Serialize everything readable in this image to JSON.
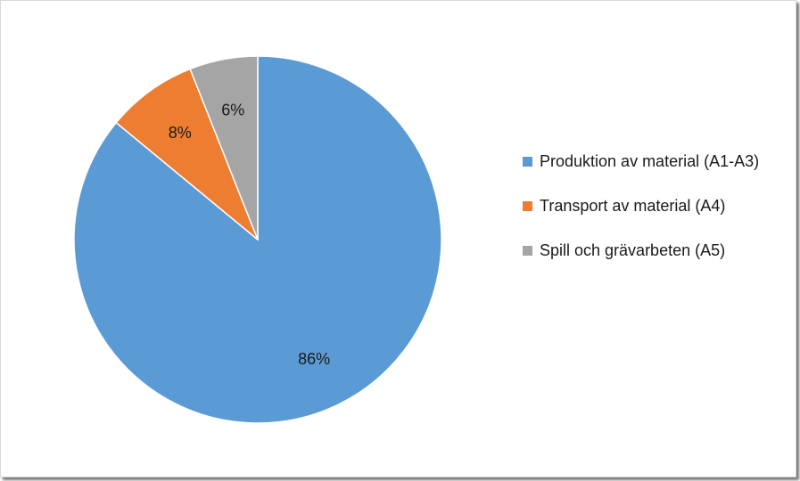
{
  "chart_data": {
    "type": "pie",
    "slices": [
      {
        "label": "Produktion av material (A1-A3)",
        "value": 86,
        "display": "86%",
        "color": "#5b9bd5"
      },
      {
        "label": "Transport av material (A4)",
        "value": 8,
        "display": "8%",
        "color": "#ed7d31"
      },
      {
        "label": "Spill och grävarbeten (A5)",
        "value": 6,
        "display": "6%",
        "color": "#a5a5a5"
      }
    ],
    "direction": "clockwise-from-top",
    "legend_position": "right",
    "data_labels": "inside"
  }
}
